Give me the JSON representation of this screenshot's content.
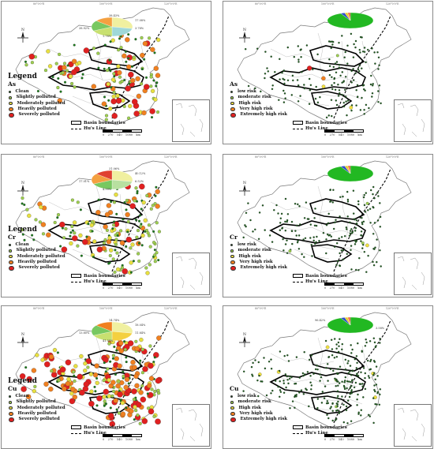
{
  "panels": [
    {
      "element": "As",
      "kind": "pollution",
      "pie_labels": [
        "38.43%",
        "17.08%",
        "3.78%",
        "38.92%",
        "1.78%"
      ],
      "pie_colors": [
        "#f0f0a0",
        "#9fd8d8",
        "#c8e070",
        "#78c860",
        "#f4a040",
        "#e04030"
      ],
      "pie_legend": [
        "Clean",
        "Slightly polluted",
        "Moderately polluted",
        "Heavily polluted",
        "Severely polluted"
      ]
    },
    {
      "element": "As",
      "kind": "risk",
      "pie_labels": [
        "",
        "",
        ""
      ],
      "pie_colors": [
        "#22b822",
        "#3050c8",
        "#e8d020",
        "#f08020",
        "#e02020"
      ],
      "pie_legend": [
        "Low risk",
        "Moderate risk",
        "High risk",
        "Very high risk",
        "Extremely high risk"
      ]
    },
    {
      "element": "Cr",
      "kind": "pollution",
      "pie_labels": [
        "31.06%",
        "40.12%",
        "6.52%",
        "17.01%",
        "4.99%"
      ],
      "pie_colors": [
        "#f0f0a0",
        "#b8e0a0",
        "#78c860",
        "#f4a040",
        "#e04030"
      ],
      "pie_legend": [
        "Clean",
        "Slightly polluted",
        "Moderately polluted",
        "Heavily polluted",
        "Severely polluted"
      ]
    },
    {
      "element": "Cr",
      "kind": "risk",
      "pie_labels": [
        "",
        "",
        ""
      ],
      "pie_colors": [
        "#22b822",
        "#3050c8",
        "#e8d020",
        "#f08020",
        "#e02020"
      ],
      "pie_legend": [
        "Low risk",
        "Moderate risk",
        "High risk",
        "Very high risk",
        "Extremely high risk"
      ]
    },
    {
      "element": "Cu",
      "kind": "pollution",
      "pie_labels": [
        "14.74%",
        "18.04%",
        "11.84%",
        "13.80%",
        "41.58%"
      ],
      "pie_colors": [
        "#f0f0a0",
        "#f4d040",
        "#c8e070",
        "#78c860",
        "#f08020",
        "#e04030"
      ],
      "pie_legend": [
        "Clean",
        "Slightly polluted",
        "Moderately polluted",
        "Heavily polluted",
        "Severely polluted"
      ]
    },
    {
      "element": "Cu",
      "kind": "risk",
      "pie_labels": [
        "96.42%",
        "",
        "3.58%"
      ],
      "pie_colors": [
        "#22b822",
        "#3050c8",
        "#e8d020",
        "#f08020",
        "#e02020"
      ],
      "pie_legend": [
        "Low risk",
        "Moderate risk",
        "High risk",
        "Very high risk",
        "Extremely high risk"
      ]
    }
  ],
  "legend": {
    "title": "Legend",
    "pollution_items": [
      "Clean",
      "Slightly polluted",
      "Moderately polluted",
      "Heavily polluted",
      "Severely polluted"
    ],
    "risk_items": [
      "low risk",
      "moderate risk",
      "High risk",
      "Very high risk",
      "Extremely high risk"
    ],
    "pollution_colors": [
      "#1a7a1a",
      "#9fd050",
      "#e8e040",
      "#f08020",
      "#e02020"
    ],
    "risk_colors": [
      "#1a5a1a",
      "#9fd050",
      "#f0e040",
      "#f08020",
      "#e02020"
    ],
    "basin_label": "Basin boundaries",
    "line_label": "Hu's Line"
  },
  "scale": {
    "ticks": [
      "0",
      "270",
      "540",
      "1080"
    ],
    "unit": "km"
  },
  "compass": {
    "north": "N"
  },
  "graticule": [
    "80°0'0\"E",
    "100°0'0\"E",
    "120°0'0\"E"
  ]
}
